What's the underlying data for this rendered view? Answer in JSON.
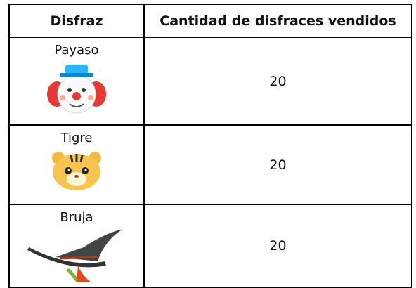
{
  "table": {
    "header": [
      "Disfraz",
      "Cantidad de disfraces vendidos"
    ],
    "rows": [
      [
        "Payaso",
        20
      ],
      [
        "Tigre",
        20
      ],
      [
        "Bruja",
        20
      ]
    ]
  }
}
